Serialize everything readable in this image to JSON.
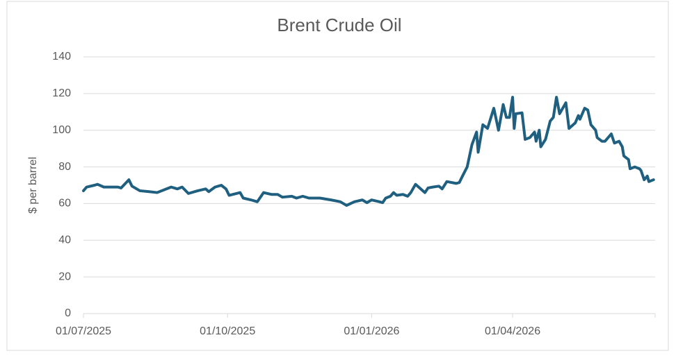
{
  "chart_data": {
    "type": "line",
    "title": "Brent Crude Oil",
    "y_label": "$ per barrel",
    "x": [
      "2025-07-01",
      "2025-07-03",
      "2025-07-08",
      "2025-07-10",
      "2025-07-14",
      "2025-07-19",
      "2025-07-23",
      "2025-07-25",
      "2025-07-30",
      "2025-08-01",
      "2025-08-06",
      "2025-08-12",
      "2025-08-17",
      "2025-08-23",
      "2025-08-26",
      "2025-08-30",
      "2025-09-02",
      "2025-09-06",
      "2025-09-12",
      "2025-09-17",
      "2025-09-19",
      "2025-09-23",
      "2025-09-27",
      "2025-09-30",
      "2025-10-02",
      "2025-10-09",
      "2025-10-11",
      "2025-10-16",
      "2025-10-20",
      "2025-10-24",
      "2025-10-29",
      "2025-11-02",
      "2025-11-05",
      "2025-11-11",
      "2025-11-14",
      "2025-11-18",
      "2025-11-22",
      "2025-11-29",
      "2025-12-06",
      "2025-12-12",
      "2025-12-16",
      "2025-12-21",
      "2025-12-26",
      "2025-12-29",
      "2026-01-01",
      "2026-01-06",
      "2026-01-08",
      "2026-01-10",
      "2026-01-13",
      "2026-01-15",
      "2026-01-17",
      "2026-01-21",
      "2026-01-24",
      "2026-01-26",
      "2026-01-29",
      "2026-02-02",
      "2026-02-04",
      "2026-02-06",
      "2026-02-09",
      "2026-02-13",
      "2026-02-15",
      "2026-02-18",
      "2026-02-24",
      "2026-02-26",
      "2026-02-28",
      "2026-03-03",
      "2026-03-06",
      "2026-03-09",
      "2026-03-10",
      "2026-03-13",
      "2026-03-16",
      "2026-03-20",
      "2026-03-23",
      "2026-03-26",
      "2026-03-28",
      "2026-03-30",
      "2026-04-01",
      "2026-04-02",
      "2026-04-03",
      "2026-04-07",
      "2026-04-09",
      "2026-04-12",
      "2026-04-15",
      "2026-04-16",
      "2026-04-18",
      "2026-04-19",
      "2026-04-22",
      "2026-04-25",
      "2026-04-27",
      "2026-04-29",
      "2026-05-01",
      "2026-05-05",
      "2026-05-07",
      "2026-05-11",
      "2026-05-13",
      "2026-05-14",
      "2026-05-17",
      "2026-05-19",
      "2026-05-21",
      "2026-05-24",
      "2026-05-25",
      "2026-05-28",
      "2026-05-30",
      "2026-06-03",
      "2026-06-05",
      "2026-06-08",
      "2026-06-10",
      "2026-06-11",
      "2026-06-14",
      "2026-06-15",
      "2026-06-18",
      "2026-06-21",
      "2026-06-22",
      "2026-06-24",
      "2026-06-26",
      "2026-06-27",
      "2026-06-30"
    ],
    "series": [
      {
        "name": "Brent Crude Oil",
        "color": "#1f5f80",
        "values": [
          67,
          69,
          70,
          70.5,
          69,
          69,
          69,
          68.5,
          73,
          69.5,
          67,
          66.5,
          66,
          68,
          69,
          68,
          69,
          65.5,
          67,
          68,
          66.5,
          69,
          70,
          68,
          64.5,
          66,
          63,
          62,
          61,
          66,
          65,
          65,
          63.5,
          64,
          63,
          64,
          63,
          63,
          62,
          61,
          59,
          61,
          62,
          60.5,
          62,
          61,
          60.5,
          63,
          64,
          66,
          64.5,
          65,
          64,
          66,
          70.5,
          67.5,
          66,
          68.5,
          69,
          69.5,
          68,
          72,
          71,
          71.5,
          75,
          80,
          92,
          99,
          88,
          103,
          101,
          112,
          100,
          114,
          107,
          107,
          118,
          101,
          109,
          109.5,
          95,
          96,
          99,
          94,
          100,
          91,
          95,
          105,
          107,
          118,
          109,
          115,
          101,
          104,
          108,
          106,
          112,
          111,
          103,
          100,
          96,
          94,
          94,
          98,
          93,
          94,
          91,
          86,
          84,
          79,
          80,
          79,
          78,
          73,
          75,
          72,
          73
        ]
      }
    ],
    "xlim": [
      "2025-07-01",
      "2026-07-01"
    ],
    "xticks": [
      {
        "value": "2025-07-01",
        "label": "01/07/2025"
      },
      {
        "value": "2025-10-01",
        "label": "01/10/2025"
      },
      {
        "value": "2026-01-01",
        "label": "01/01/2026"
      },
      {
        "value": "2026-04-01",
        "label": "01/04/2026"
      }
    ],
    "ylim": [
      0,
      140
    ],
    "yticks": [
      0,
      20,
      40,
      60,
      80,
      100,
      120,
      140
    ],
    "grid": true
  }
}
